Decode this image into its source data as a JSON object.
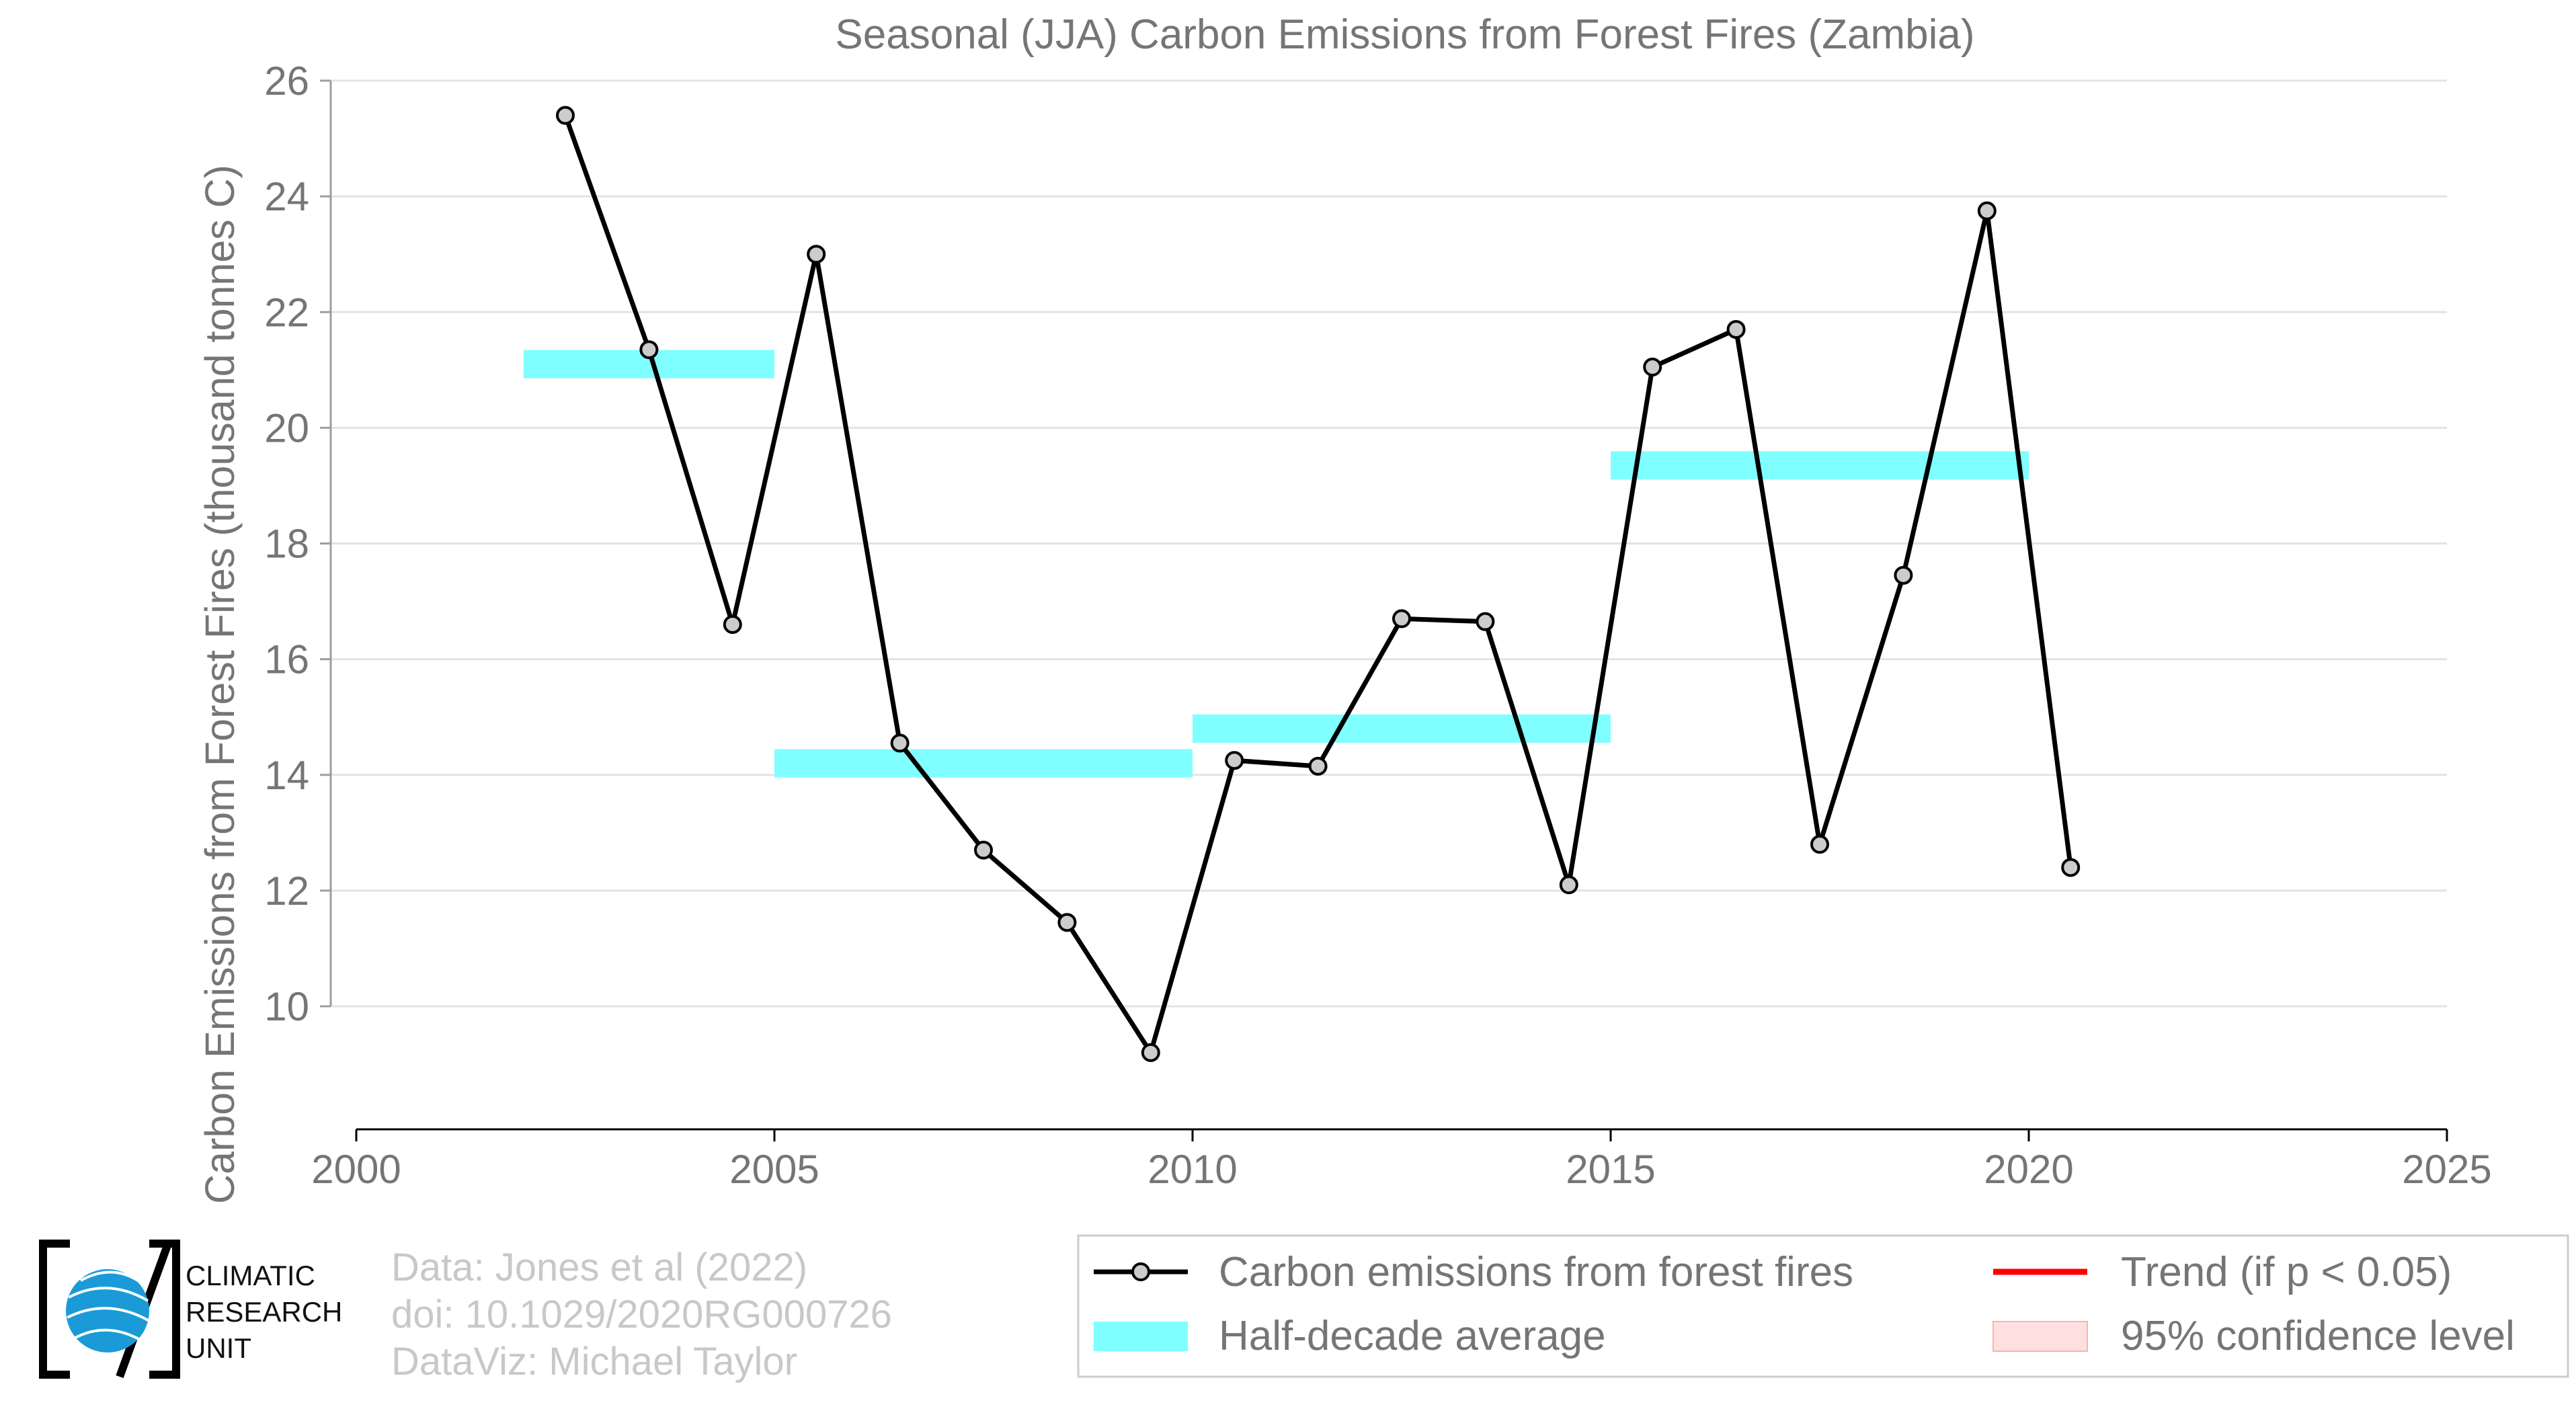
{
  "chart_data": {
    "type": "line",
    "title": "Seasonal (JJA) Carbon Emissions from Forest Fires (Zambia)",
    "xlabel": "",
    "ylabel": "Carbon Emissions from Forest Fires (thousand tonnes C)",
    "xlim": [
      2000,
      2025
    ],
    "ylim": [
      8.2,
      26.5
    ],
    "xticks": [
      2000,
      2005,
      2010,
      2015,
      2020,
      2025
    ],
    "yticks": [
      10,
      12,
      14,
      16,
      18,
      20,
      22,
      24,
      26
    ],
    "grid": true,
    "series": [
      {
        "name": "Carbon emissions from forest fires",
        "color": "#000000",
        "marker_color": "#cccccc",
        "x": [
          2002.5,
          2003.5,
          2004.5,
          2005.5,
          2006.5,
          2007.5,
          2008.5,
          2009.5,
          2010.5,
          2011.5,
          2012.5,
          2013.5,
          2014.5,
          2015.5,
          2016.5,
          2017.5,
          2018.5,
          2019.5,
          2020.5
        ],
        "y": [
          25.4,
          21.35,
          16.6,
          23.0,
          14.55,
          12.7,
          11.45,
          9.2,
          14.25,
          14.15,
          16.7,
          16.65,
          12.1,
          21.05,
          21.7,
          12.8,
          17.45,
          23.75,
          12.4
        ]
      }
    ],
    "half_decade_averages": {
      "name": "Half-decade average",
      "color": "#7fffff",
      "segments": [
        {
          "x_start": 2002,
          "x_end": 2005,
          "value": 21.1
        },
        {
          "x_start": 2005,
          "x_end": 2010,
          "value": 14.2
        },
        {
          "x_start": 2010,
          "x_end": 2015,
          "value": 14.8
        },
        {
          "x_start": 2015,
          "x_end": 2020,
          "value": 19.35
        }
      ]
    },
    "legend": {
      "placement": "bottom-right",
      "entries": [
        {
          "label": "Carbon emissions from forest fires",
          "kind": "line-marker",
          "color": "#000000"
        },
        {
          "label": "Half-decade average",
          "kind": "band",
          "color": "#7fffff"
        },
        {
          "label": "Trend (if p < 0.05)",
          "kind": "line",
          "color": "#ff0000"
        },
        {
          "label": "95% confidence level",
          "kind": "patch",
          "color": "#ffe0e0"
        }
      ]
    }
  },
  "logo": {
    "lines": [
      "CLIMATIC",
      "RESEARCH",
      "UNIT"
    ]
  },
  "credits": [
    "Data: Jones et al (2022)",
    "doi: 10.1029/2020RG000726",
    "DataViz: Michael Taylor"
  ]
}
